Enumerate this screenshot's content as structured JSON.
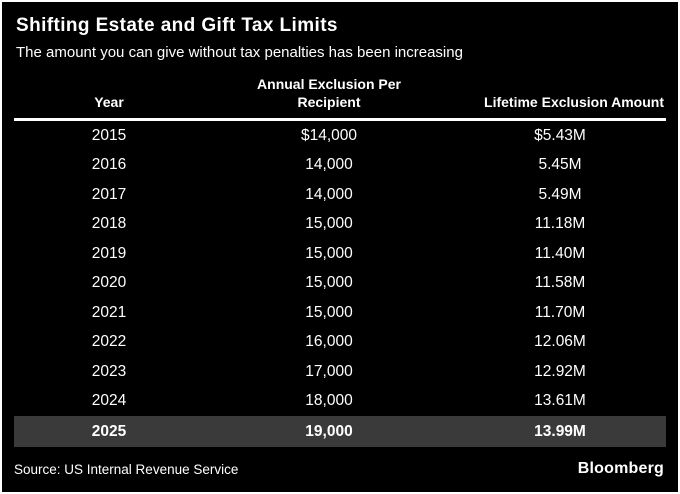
{
  "chart_data": {
    "type": "table",
    "title": "Shifting Estate and Gift Tax Limits",
    "subtitle": "The amount you can give without tax penalties has been increasing",
    "columns": [
      "Year",
      "Annual Exclusion Per Recipient",
      "Lifetime Exclusion Amount"
    ],
    "rows": [
      {
        "year": "2015",
        "annual_exclusion": "$14,000",
        "lifetime_exclusion": "$5.43M"
      },
      {
        "year": "2016",
        "annual_exclusion": "14,000",
        "lifetime_exclusion": "5.45M"
      },
      {
        "year": "2017",
        "annual_exclusion": "14,000",
        "lifetime_exclusion": "5.49M"
      },
      {
        "year": "2018",
        "annual_exclusion": "15,000",
        "lifetime_exclusion": "11.18M"
      },
      {
        "year": "2019",
        "annual_exclusion": "15,000",
        "lifetime_exclusion": "11.40M"
      },
      {
        "year": "2020",
        "annual_exclusion": "15,000",
        "lifetime_exclusion": "11.58M"
      },
      {
        "year": "2021",
        "annual_exclusion": "15,000",
        "lifetime_exclusion": "11.70M"
      },
      {
        "year": "2022",
        "annual_exclusion": "16,000",
        "lifetime_exclusion": "12.06M"
      },
      {
        "year": "2023",
        "annual_exclusion": "17,000",
        "lifetime_exclusion": "12.92M"
      },
      {
        "year": "2024",
        "annual_exclusion": "18,000",
        "lifetime_exclusion": "13.61M"
      },
      {
        "year": "2025",
        "annual_exclusion": "19,000",
        "lifetime_exclusion": "13.99M"
      }
    ],
    "highlight_year": "2025",
    "source": "Source: US Internal Revenue Service",
    "brand": "Bloomberg",
    "colors": {
      "background": "#000000",
      "text": "#ffffff",
      "highlight_row": "#3a3a3a",
      "rule": "#ffffff"
    }
  }
}
